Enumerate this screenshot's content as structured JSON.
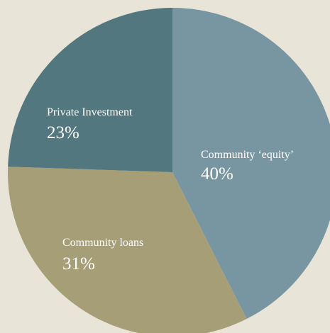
{
  "chart_data": {
    "type": "pie",
    "title": "",
    "slices": [
      {
        "label": "Community ‘equity’",
        "value": 40,
        "value_label": "40%",
        "color": "#7896a2"
      },
      {
        "label": "Community loans",
        "value": 31,
        "value_label": "31%",
        "color": "#a69e76"
      },
      {
        "label": "Private Investment",
        "value": 23,
        "value_label": "23%",
        "color": "#52777e"
      }
    ],
    "background_color": "#e8e4d8",
    "legend": "none",
    "labels_inside_slices": true
  }
}
